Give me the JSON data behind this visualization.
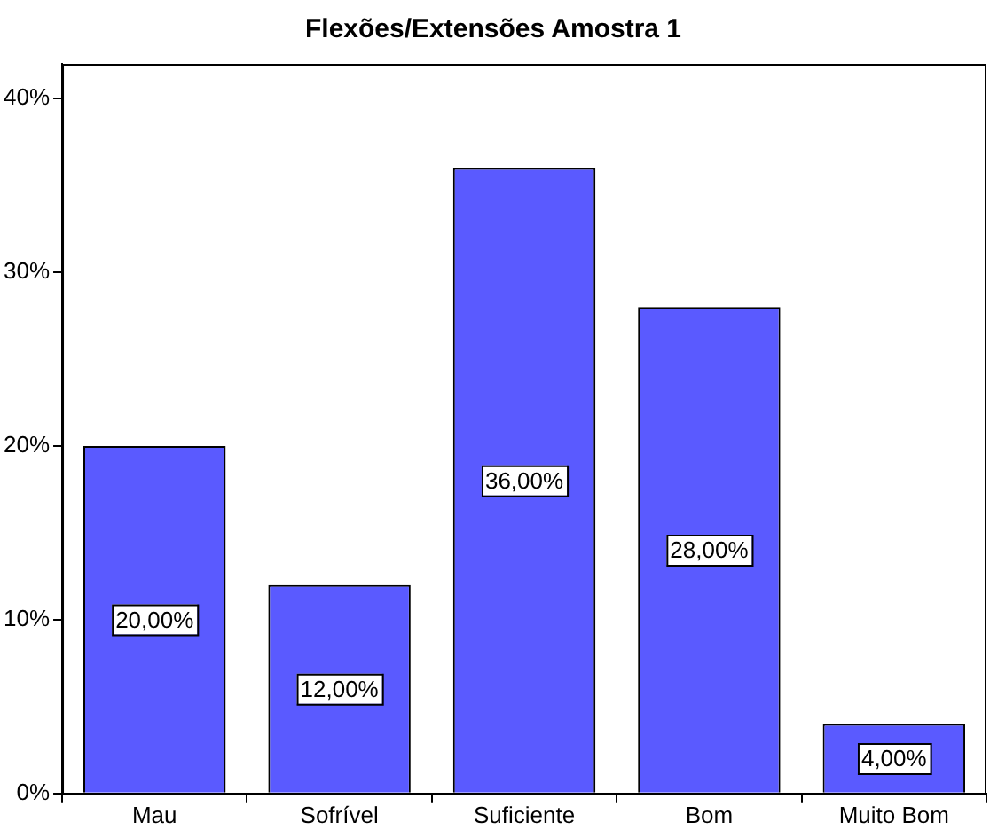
{
  "chart_data": {
    "type": "bar",
    "title": "Flexões/Extensões Amostra 1",
    "categories": [
      "Mau",
      "Sofrível",
      "Suficiente",
      "Bom",
      "Muito Bom"
    ],
    "values": [
      20,
      12,
      36,
      28,
      4
    ],
    "value_labels": [
      "20,00%",
      "12,00%",
      "36,00%",
      "28,00%",
      "4,00%"
    ],
    "color": "#5a5aff",
    "ylim": [
      0,
      42
    ],
    "yticks": [
      {
        "value": 0,
        "label": "0%"
      },
      {
        "value": 10,
        "label": "10%"
      },
      {
        "value": 20,
        "label": "20%"
      },
      {
        "value": 30,
        "label": "30%"
      },
      {
        "value": 40,
        "label": "40%"
      }
    ],
    "grid": false,
    "legend": false
  }
}
